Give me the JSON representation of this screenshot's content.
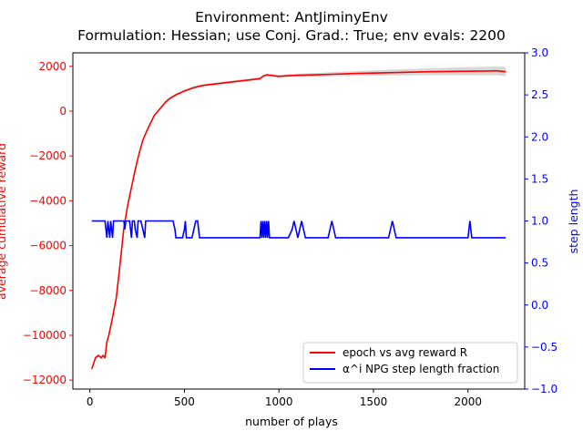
{
  "chart_data": {
    "type": "line",
    "title": "Environment: AntJiminyEnv",
    "subtitle": "Formulation: Hessian; use Conj. Grad.: True; env evals: 2200",
    "xlabel": "number of plays",
    "ylabel_left": "average cumulative reward",
    "ylabel_right": "step length",
    "xlim": [
      -90,
      2300
    ],
    "ylim_left": [
      -12400,
      2600
    ],
    "ylim_right": [
      -1.0,
      3.0
    ],
    "x_ticks": [
      0,
      500,
      1000,
      1500,
      2000
    ],
    "x_tick_labels": [
      "0",
      "500",
      "1000",
      "1500",
      "2000"
    ],
    "y_left_ticks": [
      -12000,
      -10000,
      -8000,
      -6000,
      -4000,
      -2000,
      0,
      2000
    ],
    "y_left_tick_labels": [
      "−12000",
      "−10000",
      "−8000",
      "−6000",
      "−4000",
      "−2000",
      "0",
      "2000"
    ],
    "y_right_ticks": [
      -1.0,
      -0.5,
      0.0,
      0.5,
      1.0,
      1.5,
      2.0,
      2.5,
      3.0
    ],
    "y_right_tick_labels": [
      "−1.0",
      "−0.5",
      "0.0",
      "0.5",
      "1.0",
      "1.5",
      "2.0",
      "2.5",
      "3.0"
    ],
    "colors": {
      "reward": "#ff0000",
      "step": "#0000ff",
      "band": "#c8c8c8",
      "axis": "#000000"
    },
    "legend_placement": "lower-right",
    "series": [
      {
        "name": "epoch vs avg reward R",
        "axis": "left",
        "color": "#ff0000",
        "x": [
          10,
          30,
          45,
          60,
          70,
          80,
          90,
          100,
          120,
          140,
          160,
          180,
          200,
          220,
          240,
          260,
          280,
          300,
          320,
          340,
          360,
          380,
          400,
          420,
          440,
          460,
          480,
          500,
          550,
          600,
          650,
          700,
          750,
          800,
          850,
          900,
          910,
          920,
          930,
          940,
          950,
          1000,
          1050,
          1100,
          1200,
          1300,
          1400,
          1500,
          1600,
          1700,
          1800,
          1900,
          2000,
          2100,
          2150,
          2200
        ],
        "y": [
          -11500,
          -11000,
          -10900,
          -11000,
          -10900,
          -11000,
          -10300,
          -10000,
          -9200,
          -8300,
          -6800,
          -5200,
          -4200,
          -3400,
          -2600,
          -1900,
          -1300,
          -900,
          -550,
          -200,
          0,
          200,
          400,
          550,
          650,
          750,
          820,
          900,
          1050,
          1150,
          1200,
          1250,
          1300,
          1350,
          1400,
          1450,
          1520,
          1580,
          1600,
          1620,
          1600,
          1550,
          1580,
          1600,
          1620,
          1650,
          1680,
          1700,
          1720,
          1740,
          1760,
          1770,
          1780,
          1790,
          1800,
          1760
        ]
      },
      {
        "name": "α^i NPG step length fraction",
        "axis": "right",
        "color": "#0000ff",
        "x": [
          10,
          80,
          85,
          90,
          95,
          100,
          105,
          110,
          115,
          120,
          125,
          130,
          180,
          185,
          190,
          195,
          200,
          210,
          215,
          220,
          225,
          230,
          235,
          240,
          250,
          255,
          260,
          265,
          270,
          280,
          290,
          295,
          300,
          305,
          310,
          330,
          340,
          345,
          350,
          360,
          370,
          380,
          390,
          400,
          410,
          420,
          430,
          440,
          450,
          455,
          460,
          470,
          490,
          500,
          505,
          510,
          520,
          540,
          560,
          570,
          580,
          590,
          900,
          905,
          910,
          915,
          920,
          925,
          930,
          935,
          940,
          945,
          950,
          960,
          1050,
          1070,
          1080,
          1100,
          1110,
          1120,
          1140,
          1160,
          1200,
          1260,
          1280,
          1300,
          1580,
          1600,
          1620,
          2000,
          2010,
          2020,
          2050,
          2200
        ],
        "y": [
          1.0,
          1.0,
          0.9,
          0.8,
          1.0,
          0.9,
          0.8,
          1.0,
          0.9,
          0.8,
          1.0,
          1.0,
          1.0,
          0.9,
          1.0,
          1.0,
          1.0,
          1.0,
          0.9,
          0.8,
          1.0,
          1.0,
          1.0,
          0.9,
          0.8,
          1.0,
          1.0,
          1.0,
          1.0,
          0.9,
          0.8,
          1.0,
          1.0,
          1.0,
          1.0,
          1.0,
          1.0,
          1.0,
          1.0,
          1.0,
          1.0,
          1.0,
          1.0,
          1.0,
          1.0,
          1.0,
          1.0,
          1.0,
          0.9,
          0.8,
          0.8,
          0.8,
          0.8,
          0.9,
          1.0,
          0.8,
          0.8,
          0.8,
          1.0,
          1.0,
          0.8,
          0.8,
          0.8,
          1.0,
          0.8,
          1.0,
          0.8,
          1.0,
          0.8,
          1.0,
          0.8,
          1.0,
          0.8,
          0.8,
          0.8,
          0.9,
          1.0,
          0.8,
          0.9,
          1.0,
          0.8,
          0.8,
          0.8,
          0.8,
          1.0,
          0.8,
          0.8,
          1.0,
          0.8,
          0.8,
          1.0,
          0.8,
          0.8,
          0.8
        ]
      }
    ],
    "legend": [
      {
        "label": "epoch vs avg reward R",
        "color": "#ff0000"
      },
      {
        "label": "α^i NPG step length fraction",
        "color": "#0000ff"
      }
    ]
  }
}
